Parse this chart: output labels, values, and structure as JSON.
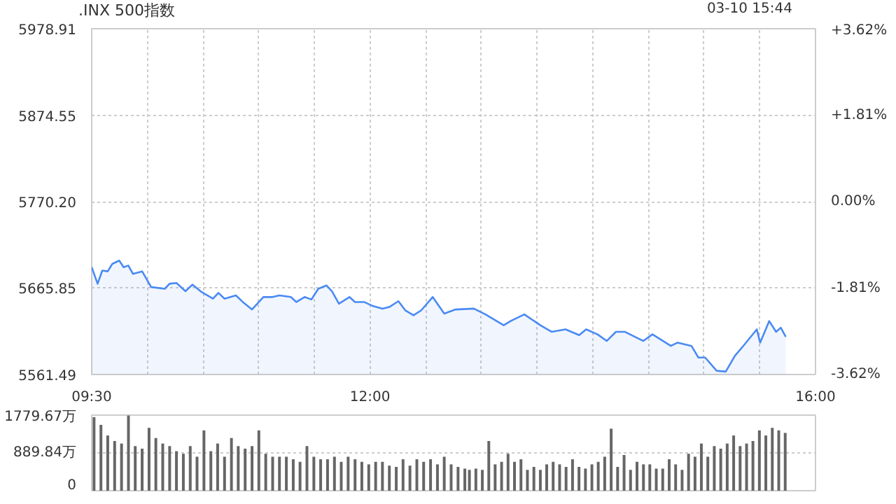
{
  "chart_data": [
    {
      "type": "area",
      "title": ".INX 500指数",
      "annotations": [
        "03-10 15:44"
      ],
      "grid": true,
      "xlim": [
        9.5,
        16
      ],
      "xticks": [
        {
          "value": 9.5,
          "label": "09:30"
        },
        {
          "value": 10,
          "label": null
        },
        {
          "value": 10.5,
          "label": null
        },
        {
          "value": 11,
          "label": null
        },
        {
          "value": 11.5,
          "label": null
        },
        {
          "value": 12,
          "label": "12:00"
        },
        {
          "value": 12.5,
          "label": null
        },
        {
          "value": 13,
          "label": null
        },
        {
          "value": 13.5,
          "label": null
        },
        {
          "value": 14,
          "label": null
        },
        {
          "value": 14.5,
          "label": null
        },
        {
          "value": 15,
          "label": null
        },
        {
          "value": 15.5,
          "label": null
        },
        {
          "value": 16,
          "label": "16:00"
        }
      ],
      "ylim": [
        5561.49,
        5978.91
      ],
      "yticks": [
        5561.49,
        5665.85,
        {
          "value": 5770.2,
          "label": "5770.20"
        },
        5874.55,
        5978.91
      ],
      "y2lim": [
        -3.62,
        3.62
      ],
      "y2ticks": [
        {
          "value": -3.62,
          "label": "-3.62%"
        },
        {
          "value": -1.81,
          "label": "-1.81%"
        },
        {
          "value": 0,
          "label": "0.00%"
        },
        {
          "value": 1.81,
          "label": "+1.81%"
        },
        {
          "value": 3.62,
          "label": "+3.62%"
        }
      ],
      "series": [
        {
          "color": "#4a8af4",
          "x": [
            9.5,
            9.553,
            9.595,
            9.644,
            9.685,
            9.747,
            9.787,
            9.829,
            9.87,
            9.953,
            10.034,
            10.157,
            10.199,
            10.261,
            10.342,
            10.404,
            10.487,
            10.589,
            10.638,
            10.693,
            10.795,
            10.857,
            10.939,
            11.042,
            11.124,
            11.186,
            11.288,
            11.338,
            11.412,
            11.473,
            11.535,
            11.609,
            11.658,
            11.72,
            11.815,
            11.864,
            11.946,
            12.028,
            12.111,
            12.173,
            12.254,
            12.316,
            12.39,
            12.46,
            12.562,
            12.666,
            12.768,
            12.932,
            13.036,
            13.2,
            13.262,
            13.385,
            13.529,
            13.632,
            13.755,
            13.878,
            13.94,
            14.042,
            14.125,
            14.208,
            14.289,
            14.454,
            14.536,
            14.701,
            14.762,
            14.886,
            14.948,
            15.009,
            15.112,
            15.194,
            15.276,
            15.358,
            15.473,
            15.503,
            15.584,
            15.646,
            15.688,
            15.733
          ],
          "values": [
            5691,
            5671,
            5687,
            5686,
            5695,
            5699,
            5691,
            5693,
            5683,
            5686,
            5667,
            5665,
            5671,
            5672,
            5662,
            5670,
            5661,
            5653,
            5660,
            5653,
            5657,
            5649,
            5640,
            5655,
            5655,
            5657,
            5655,
            5649,
            5655,
            5652,
            5665,
            5669,
            5662,
            5647,
            5655,
            5649,
            5649,
            5644,
            5641,
            5643,
            5650,
            5639,
            5633,
            5639,
            5655,
            5635,
            5640,
            5641,
            5634,
            5621,
            5626,
            5634,
            5621,
            5613,
            5616,
            5609,
            5616,
            5610,
            5602,
            5613,
            5613,
            5602,
            5610,
            5596,
            5600,
            5596,
            5582,
            5582,
            5566,
            5565,
            5584,
            5597,
            5616,
            5600,
            5626,
            5613,
            5618,
            5607
          ]
        }
      ]
    },
    {
      "type": "bar",
      "grid": "y",
      "tick_labels": "y",
      "xlim": [
        9.5,
        16
      ],
      "ylim": [
        0,
        1779.67
      ],
      "yticks": [
        0,
        {
          "value": 889.84,
          "label": "889.84万"
        },
        {
          "value": 1779.67,
          "label": "1779.67万"
        }
      ],
      "series": [
        {
          "color": "#666666",
          "x": [
            9.521,
            9.583,
            9.644,
            9.706,
            9.768,
            9.83,
            9.891,
            9.953,
            10.015,
            10.076,
            10.138,
            10.2,
            10.261,
            10.323,
            10.385,
            10.446,
            10.508,
            10.57,
            10.631,
            10.693,
            10.755,
            10.816,
            10.878,
            10.94,
            11.001,
            11.063,
            11.125,
            11.186,
            11.248,
            11.31,
            11.371,
            11.433,
            11.495,
            11.556,
            11.618,
            11.68,
            11.741,
            11.803,
            11.865,
            11.926,
            11.988,
            12.05,
            12.111,
            12.173,
            12.235,
            12.296,
            12.358,
            12.42,
            12.481,
            12.543,
            12.605,
            12.666,
            12.728,
            12.79,
            12.851,
            12.892,
            12.95,
            13.008,
            13.066,
            13.123,
            13.181,
            13.239,
            13.297,
            13.355,
            13.413,
            13.471,
            13.529,
            13.586,
            13.644,
            13.702,
            13.76,
            13.818,
            13.876,
            13.934,
            13.992,
            14.049,
            14.107,
            14.165,
            14.223,
            14.281,
            14.339,
            14.397,
            14.455,
            14.512,
            14.57,
            14.628,
            14.686,
            14.744,
            14.802,
            14.86,
            14.918,
            14.975,
            15.033,
            15.091,
            15.149,
            15.207,
            15.265,
            15.323,
            15.381,
            15.438,
            15.496,
            15.554,
            15.612,
            15.67,
            15.728
          ],
          "values": [
            1730,
            1550,
            1300,
            1170,
            1110,
            1770,
            1050,
            990,
            1480,
            1240,
            1110,
            1050,
            930,
            870,
            1050,
            800,
            1420,
            930,
            1110,
            800,
            1240,
            1050,
            990,
            1050,
            1420,
            870,
            800,
            800,
            800,
            740,
            680,
            1050,
            800,
            740,
            740,
            800,
            680,
            800,
            740,
            680,
            620,
            680,
            680,
            590,
            560,
            740,
            590,
            740,
            680,
            740,
            620,
            800,
            620,
            560,
            520,
            490,
            520,
            490,
            1170,
            620,
            680,
            870,
            680,
            740,
            490,
            560,
            490,
            620,
            680,
            620,
            560,
            740,
            560,
            520,
            620,
            680,
            800,
            1460,
            560,
            840,
            490,
            680,
            620,
            620,
            520,
            520,
            740,
            620,
            490,
            870,
            800,
            1110,
            800,
            1050,
            990,
            1110,
            1300,
            1050,
            1110,
            1170,
            1420,
            1300,
            1480,
            1420,
            1360
          ]
        }
      ]
    }
  ]
}
